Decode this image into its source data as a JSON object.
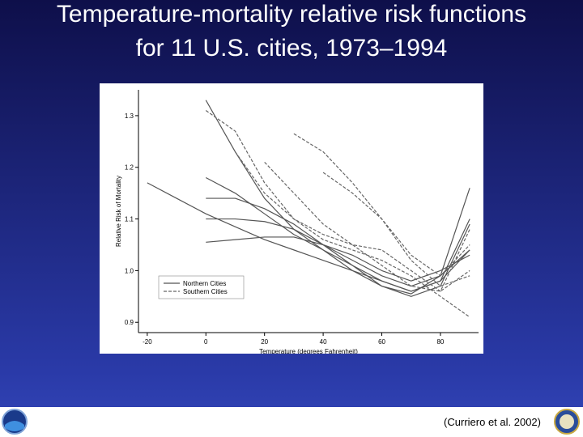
{
  "title": [
    "Temperature-mortality relative risk functions",
    "for 11 U.S. cities, 1973–1994"
  ],
  "citation": "(Curriero et al. 2002)",
  "chart_data": {
    "type": "line",
    "x_label": "Temperature (degrees Fahrenheit)",
    "y_label": "Relative Risk of Mortality",
    "x": [
      -20,
      -10,
      0,
      10,
      20,
      30,
      40,
      50,
      60,
      70,
      80,
      90
    ],
    "xlim": [
      -23,
      93
    ],
    "ylim": [
      0.88,
      1.35
    ],
    "xticks": [
      -20,
      0,
      20,
      40,
      60,
      80
    ],
    "yticks": [
      0.9,
      {
        "value": 1,
        "label": "1.0"
      },
      1.1,
      1.2,
      1.3
    ],
    "legend": "lower left",
    "series": [
      {
        "name": "Northern Cities",
        "color": "#555555",
        "dash": false,
        "curves": [
          [
            1.17,
            1.14,
            1.11,
            1.085,
            1.06,
            1.04,
            1.02,
            1.0,
            0.98,
            0.96,
            0.98,
            1.04
          ],
          [
            null,
            null,
            1.33,
            1.23,
            1.14,
            1.08,
            1.04,
            1.0,
            0.97,
            0.955,
            0.99,
            1.16
          ],
          [
            null,
            null,
            1.18,
            1.15,
            1.11,
            1.07,
            1.04,
            1.01,
            0.98,
            0.96,
            0.98,
            1.1
          ],
          [
            null,
            null,
            1.14,
            1.14,
            1.12,
            1.09,
            1.05,
            1.01,
            0.97,
            0.95,
            0.97,
            1.09
          ],
          [
            null,
            null,
            1.1,
            1.1,
            1.095,
            1.08,
            1.05,
            1.02,
            0.99,
            0.97,
            0.99,
            1.04
          ],
          [
            null,
            null,
            1.055,
            1.06,
            1.065,
            1.065,
            1.05,
            1.03,
            1.0,
            0.98,
            1.0,
            1.03
          ]
        ]
      },
      {
        "name": "Southern Cities",
        "color": "#666666",
        "dash": true,
        "curves": [
          [
            null,
            null,
            1.31,
            1.27,
            1.17,
            1.1,
            1.06,
            1.04,
            1.02,
            0.99,
            0.95,
            0.91
          ],
          [
            null,
            null,
            null,
            1.23,
            1.15,
            1.1,
            1.07,
            1.05,
            1.04,
            1.0,
            0.96,
            1.08
          ],
          [
            null,
            null,
            null,
            null,
            null,
            1.265,
            1.23,
            1.17,
            1.1,
            1.02,
            0.97,
            0.99
          ],
          [
            null,
            null,
            null,
            null,
            null,
            null,
            1.19,
            1.15,
            1.1,
            1.03,
            0.99,
            1.05
          ],
          [
            null,
            null,
            null,
            null,
            1.21,
            1.15,
            1.09,
            1.05,
            1.01,
            0.97,
            0.96,
            1.0
          ]
        ]
      }
    ]
  }
}
